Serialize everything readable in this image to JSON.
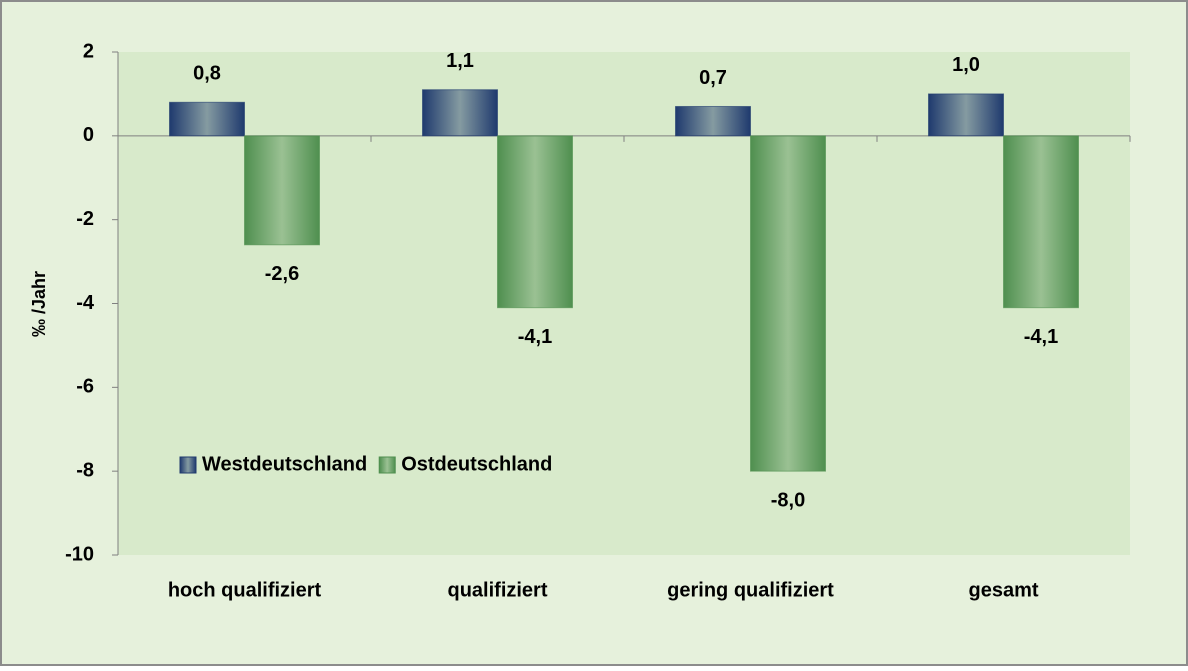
{
  "chart_data": {
    "type": "bar",
    "categories": [
      "hoch qualifiziert",
      "qualifiziert",
      "gering qualifiziert",
      "gesamt"
    ],
    "series": [
      {
        "name": "Westdeutschland",
        "color": "#1f3a6e",
        "values": [
          0.8,
          1.1,
          0.7,
          1.0
        ],
        "value_labels": [
          "0,8",
          "1,1",
          "0,7",
          "1,0"
        ]
      },
      {
        "name": "Ostdeutschland",
        "color": "#4f8f4f",
        "values": [
          -2.6,
          -4.1,
          -8.0,
          -4.1
        ],
        "value_labels": [
          "-2,6",
          "-4,1",
          "-8,0",
          "-4,1"
        ]
      }
    ],
    "ylabel": "‰ /Jahr",
    "ylim": [
      -10,
      2
    ],
    "yticks": [
      -10,
      -8,
      -6,
      -4,
      -2,
      0,
      2
    ],
    "legend": "lower left"
  }
}
